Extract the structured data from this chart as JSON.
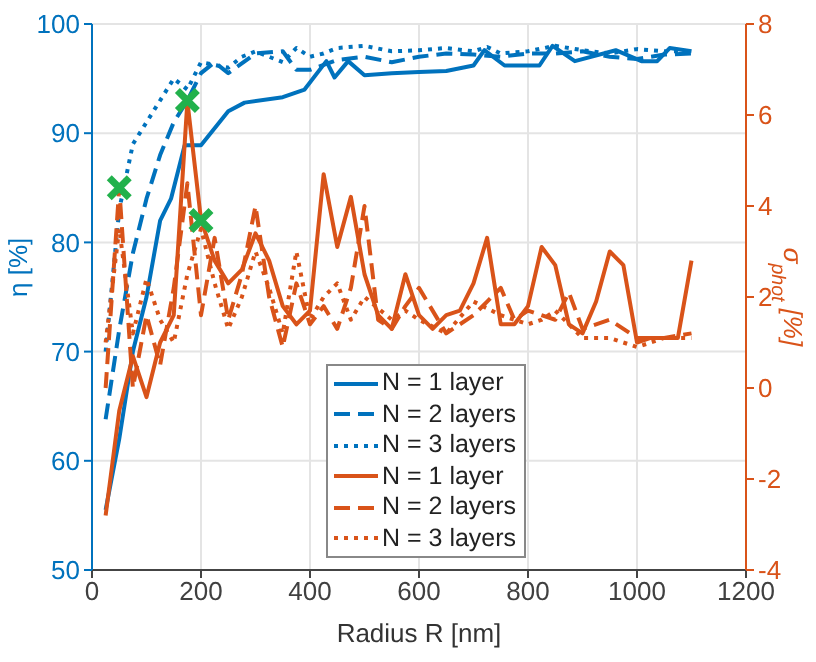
{
  "chart_data": {
    "type": "line",
    "xlabel": "Radius R [nm]",
    "ylabel": "η [%]",
    "y2label": "σ$_{phot}$ [%]",
    "xlim": [
      0,
      1200
    ],
    "xticks": [
      0,
      200,
      400,
      600,
      800,
      1000,
      1200
    ],
    "ylim": [
      50,
      100
    ],
    "yticks": [
      50,
      60,
      70,
      80,
      90,
      100
    ],
    "y2lim": [
      -4,
      8
    ],
    "y2ticks": [
      -4,
      -2,
      0,
      2,
      4,
      6,
      8
    ],
    "grid": true,
    "legend": "bottom",
    "marker": "none",
    "series": [
      {
        "name": "N = 1 layer",
        "color": "#0072bd",
        "line_style": "solid",
        "x": [
          25,
          50,
          75,
          100,
          125,
          145,
          170,
          200,
          250,
          280,
          350,
          390,
          430,
          445,
          470,
          500,
          550,
          600,
          650,
          700,
          720,
          757,
          821,
          845,
          886,
          961,
          1008,
          1037,
          1060,
          1100
        ],
        "values": [
          55.5,
          62,
          70,
          75,
          82,
          84,
          88.9,
          88.9,
          92,
          92.8,
          93.3,
          94,
          96.6,
          95.1,
          96.6,
          95.3,
          95.5,
          95.6,
          95.7,
          96.2,
          97.6,
          96.2,
          96.2,
          98,
          96.6,
          97.6,
          96.6,
          96.6,
          97.8,
          97.5
        ]
      },
      {
        "name": "N = 2 layers",
        "color": "#0072bd",
        "line_style": "dashed",
        "x": [
          25,
          50,
          75,
          100,
          125,
          150,
          175,
          200,
          225,
          250,
          300,
          350,
          375,
          400,
          450,
          500,
          550,
          600,
          650,
          700,
          750,
          800,
          850,
          900,
          950,
          1000,
          1050,
          1100
        ],
        "values": [
          63.8,
          72,
          79,
          84,
          88,
          91,
          93,
          95.5,
          96.5,
          95.5,
          97.3,
          97.5,
          95.8,
          95.8,
          96.7,
          97,
          96.5,
          97,
          97.3,
          97.2,
          97,
          97.3,
          97.3,
          97.5,
          97,
          96.8,
          97.2,
          97.3
        ]
      },
      {
        "name": "N = 3 layers",
        "color": "#0072bd",
        "line_style": "dotted",
        "x": [
          25,
          50,
          75,
          100,
          125,
          150,
          175,
          200,
          250,
          275,
          300,
          350,
          375,
          400,
          425,
          450,
          500,
          550,
          600,
          650,
          700,
          725,
          750,
          800,
          850,
          900,
          950,
          1000,
          1050,
          1100
        ],
        "values": [
          70,
          83,
          89,
          91,
          93,
          95,
          94,
          96.5,
          96,
          97,
          97.5,
          96.5,
          97.8,
          97,
          97.3,
          97.8,
          98,
          97.5,
          97.6,
          97.8,
          97.5,
          97.9,
          97.3,
          97.5,
          98,
          97.6,
          97.3,
          97.7,
          97.5,
          97.5
        ]
      },
      {
        "name": "N = 1 layer",
        "color": "#d95319",
        "line_style": "solid",
        "axis": "y2",
        "x": [
          25,
          50,
          75,
          100,
          125,
          150,
          175,
          200,
          225,
          250,
          275,
          300,
          325,
          350,
          375,
          400,
          425,
          450,
          475,
          500,
          525,
          550,
          575,
          600,
          625,
          650,
          675,
          700,
          725,
          750,
          775,
          800,
          825,
          850,
          875,
          900,
          925,
          950,
          975,
          1000,
          1025,
          1050,
          1075,
          1100
        ],
        "values": [
          -2.8,
          -0.5,
          0.7,
          -0.2,
          1,
          1.6,
          6.3,
          3.7,
          2.8,
          2.3,
          2.6,
          3.4,
          2.8,
          1.8,
          1.4,
          1.7,
          4.7,
          3.1,
          4.2,
          2.5,
          1.6,
          1.3,
          2.5,
          1.6,
          1.3,
          1.6,
          1.7,
          2.3,
          3.3,
          1.4,
          1.4,
          1.8,
          3.1,
          2.7,
          1.4,
          1.2,
          1.9,
          3,
          2.7,
          1,
          1.1,
          1.1,
          1.1,
          2.8
        ]
      },
      {
        "name": "N = 2 layers",
        "color": "#d95319",
        "line_style": "dashed",
        "axis": "y2",
        "x": [
          25,
          50,
          75,
          100,
          125,
          150,
          175,
          200,
          225,
          250,
          275,
          300,
          325,
          350,
          375,
          400,
          425,
          450,
          475,
          500,
          525,
          550,
          575,
          600,
          650,
          700,
          725,
          750,
          775,
          800,
          850,
          875,
          900,
          950,
          1000,
          1050,
          1100
        ],
        "values": [
          0,
          4.4,
          0,
          1.6,
          0.5,
          2.2,
          4.5,
          1.6,
          3.3,
          1.5,
          2.5,
          4,
          2,
          0.9,
          2.3,
          1.4,
          1.8,
          1.3,
          2.2,
          4,
          1.5,
          1.3,
          1.8,
          2.2,
          1.2,
          1.6,
          1.9,
          2.2,
          1.5,
          1.7,
          1.5,
          2.1,
          1.3,
          1.5,
          1.1,
          1.1,
          1.2
        ]
      },
      {
        "name": "N = 3 layers",
        "color": "#d95319",
        "line_style": "dotted",
        "axis": "y2",
        "x": [
          25,
          50,
          75,
          100,
          125,
          150,
          175,
          200,
          225,
          250,
          275,
          300,
          325,
          350,
          375,
          400,
          425,
          450,
          475,
          500,
          550,
          575,
          600,
          650,
          700,
          750,
          800,
          825,
          850,
          900,
          950,
          1000,
          1050,
          1100
        ],
        "values": [
          1,
          3.5,
          1.2,
          2.4,
          1.5,
          1,
          2.5,
          3.5,
          2.3,
          1.3,
          2,
          3,
          2.2,
          1.2,
          3,
          1.5,
          2,
          2.3,
          1.5,
          2,
          1.5,
          1.7,
          1.5,
          1.2,
          1.9,
          1.6,
          1.4,
          1.5,
          1.7,
          1.1,
          1.1,
          0.9,
          1.1,
          1.1
        ]
      },
      {
        "type": "scatter",
        "color": "#22b14c",
        "marker": "cross",
        "x": [
          50,
          175,
          200
        ],
        "values": [
          85,
          93,
          82
        ]
      }
    ]
  }
}
